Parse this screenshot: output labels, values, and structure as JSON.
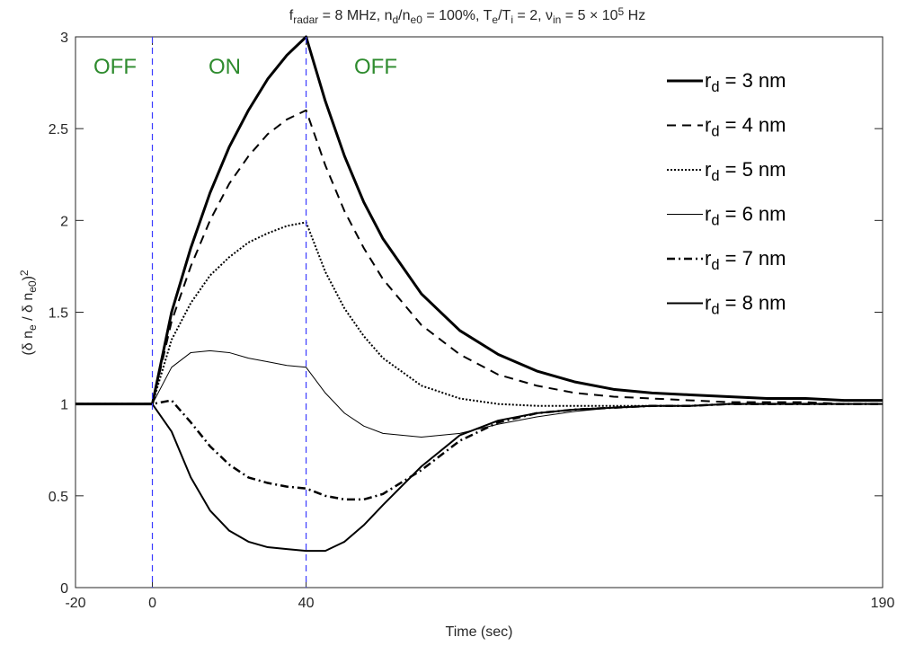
{
  "chart_data": {
    "type": "line",
    "title": [
      {
        "text": "f",
        "pos": "base"
      },
      {
        "text": "radar",
        "pos": "sub"
      },
      {
        "text": " = 8 MHz, n",
        "pos": "base"
      },
      {
        "text": "d",
        "pos": "sub"
      },
      {
        "text": "/n",
        "pos": "base"
      },
      {
        "text": "e0",
        "pos": "sub"
      },
      {
        "text": " = 100%, T",
        "pos": "base"
      },
      {
        "text": "e",
        "pos": "sub"
      },
      {
        "text": "/T",
        "pos": "base"
      },
      {
        "text": "i",
        "pos": "sub"
      },
      {
        "text": " = 2, ν",
        "pos": "base"
      },
      {
        "text": "in",
        "pos": "sub"
      },
      {
        "text": " = 5 × 10",
        "pos": "base"
      },
      {
        "text": "5",
        "pos": "sup"
      },
      {
        "text": " Hz",
        "pos": "base"
      }
    ],
    "x_label": "Time (sec)",
    "y_label": [
      {
        "text": "(δ n",
        "pos": "base"
      },
      {
        "text": "e",
        "pos": "sub"
      },
      {
        "text": " / δ n",
        "pos": "base"
      },
      {
        "text": "e0",
        "pos": "sub"
      },
      {
        "text": ")",
        "pos": "base"
      },
      {
        "text": "2",
        "pos": "sup"
      }
    ],
    "annotations": [
      "OFF",
      "ON",
      "OFF"
    ],
    "annotation_color": "#2e8b2e",
    "vlines": [
      0,
      40
    ],
    "vline_color": "#3a3aff",
    "x": [
      -20,
      -10,
      0,
      5,
      10,
      15,
      20,
      25,
      30,
      35,
      40,
      45,
      50,
      55,
      60,
      70,
      80,
      90,
      100,
      110,
      120,
      130,
      140,
      150,
      160,
      170,
      180,
      190
    ],
    "xlim": [
      -20,
      190
    ],
    "xticks": [
      -20,
      0,
      40,
      190
    ],
    "ylim": [
      0,
      3
    ],
    "yticks": [
      0,
      0.5,
      1,
      1.5,
      2,
      2.5,
      3
    ],
    "legend": "upper right",
    "series": [
      {
        "name": [
          {
            "text": "r",
            "pos": "base"
          },
          {
            "text": "d",
            "pos": "sub"
          },
          {
            "text": " = 3 nm",
            "pos": "base"
          }
        ],
        "color": "#000000",
        "width": 3,
        "dash": "none",
        "values": [
          1,
          1,
          1,
          1.5,
          1.85,
          2.15,
          2.4,
          2.6,
          2.77,
          2.9,
          3.0,
          2.65,
          2.35,
          2.1,
          1.9,
          1.6,
          1.4,
          1.27,
          1.18,
          1.12,
          1.08,
          1.06,
          1.05,
          1.04,
          1.03,
          1.03,
          1.02,
          1.02
        ]
      },
      {
        "name": [
          {
            "text": "r",
            "pos": "base"
          },
          {
            "text": "d",
            "pos": "sub"
          },
          {
            "text": " = 4 nm",
            "pos": "base"
          }
        ],
        "color": "#000000",
        "width": 2,
        "dash": "10 7",
        "values": [
          1,
          1,
          1,
          1.45,
          1.75,
          2.0,
          2.2,
          2.35,
          2.47,
          2.55,
          2.6,
          2.3,
          2.05,
          1.85,
          1.68,
          1.43,
          1.27,
          1.16,
          1.1,
          1.06,
          1.04,
          1.03,
          1.02,
          1.01,
          1.01,
          1.01,
          1.0,
          1.0
        ]
      },
      {
        "name": [
          {
            "text": "r",
            "pos": "base"
          },
          {
            "text": "d",
            "pos": "sub"
          },
          {
            "text": " = 5 nm",
            "pos": "base"
          }
        ],
        "color": "#000000",
        "width": 2,
        "dash": "2 2",
        "values": [
          1,
          1,
          1,
          1.35,
          1.55,
          1.7,
          1.8,
          1.88,
          1.93,
          1.97,
          1.99,
          1.72,
          1.52,
          1.37,
          1.25,
          1.1,
          1.03,
          1.0,
          0.99,
          0.99,
          0.99,
          0.99,
          0.99,
          1.0,
          1.0,
          1.0,
          1.0,
          1.0
        ]
      },
      {
        "name": [
          {
            "text": "r",
            "pos": "base"
          },
          {
            "text": "d",
            "pos": "sub"
          },
          {
            "text": " = 6 nm",
            "pos": "base"
          }
        ],
        "color": "#000000",
        "width": 1,
        "dash": "none",
        "values": [
          1,
          1,
          1,
          1.2,
          1.28,
          1.29,
          1.28,
          1.25,
          1.23,
          1.21,
          1.2,
          1.06,
          0.95,
          0.88,
          0.84,
          0.82,
          0.84,
          0.89,
          0.93,
          0.96,
          0.98,
          0.99,
          0.99,
          1.0,
          1.0,
          1.0,
          1.0,
          1.0
        ]
      },
      {
        "name": [
          {
            "text": "r",
            "pos": "base"
          },
          {
            "text": "d",
            "pos": "sub"
          },
          {
            "text": " = 7 nm",
            "pos": "base"
          }
        ],
        "color": "#000000",
        "width": 2.5,
        "dash": "9 4 2 4",
        "values": [
          1,
          1,
          1,
          1.02,
          0.9,
          0.77,
          0.67,
          0.6,
          0.57,
          0.55,
          0.54,
          0.5,
          0.48,
          0.48,
          0.51,
          0.64,
          0.8,
          0.9,
          0.95,
          0.97,
          0.98,
          0.99,
          0.99,
          1.0,
          1.0,
          1.0,
          1.0,
          1.0
        ]
      },
      {
        "name": [
          {
            "text": "r",
            "pos": "base"
          },
          {
            "text": "d",
            "pos": "sub"
          },
          {
            "text": " = 8 nm",
            "pos": "base"
          }
        ],
        "color": "#000000",
        "width": 2,
        "dash": "none",
        "values": [
          1,
          1,
          1,
          0.85,
          0.6,
          0.42,
          0.31,
          0.25,
          0.22,
          0.21,
          0.2,
          0.2,
          0.25,
          0.34,
          0.45,
          0.66,
          0.83,
          0.91,
          0.95,
          0.97,
          0.98,
          0.99,
          0.99,
          1.0,
          1.0,
          1.0,
          1.0,
          1.0
        ]
      }
    ]
  }
}
